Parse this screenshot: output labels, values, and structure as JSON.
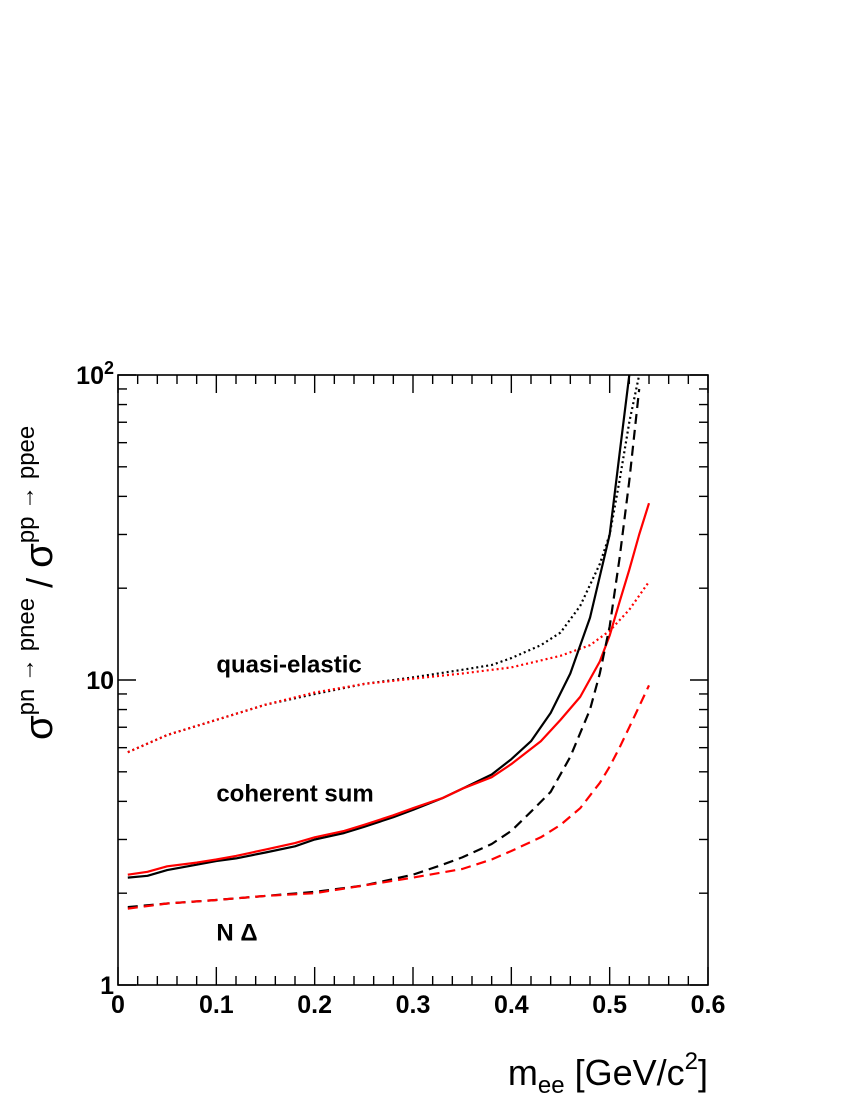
{
  "chart_data": {
    "type": "line",
    "xlabel": {
      "base": "m",
      "sub": "ee",
      "unit": " [GeV/c",
      "sup": "2",
      "close": "]"
    },
    "ylabel": {
      "sigma1": "σ",
      "sup1": "pn → pnee",
      "slash": " / ",
      "sigma2": "σ",
      "sup2": "pp → ppee"
    },
    "xlim": [
      0,
      0.6
    ],
    "ylim": [
      1,
      100
    ],
    "yscale": "log",
    "x_ticks": [
      {
        "v": 0,
        "label": "0"
      },
      {
        "v": 0.1,
        "label": "0.1"
      },
      {
        "v": 0.2,
        "label": "0.2"
      },
      {
        "v": 0.3,
        "label": "0.3"
      },
      {
        "v": 0.4,
        "label": "0.4"
      },
      {
        "v": 0.5,
        "label": "0.5"
      },
      {
        "v": 0.6,
        "label": "0.6"
      }
    ],
    "y_ticks": [
      {
        "v": 1,
        "label": "1",
        "sup": ""
      },
      {
        "v": 10,
        "label": "10",
        "sup": ""
      },
      {
        "v": 100,
        "label": "10",
        "sup": "2"
      }
    ],
    "annotations": [
      {
        "text": "quasi-elastic",
        "x": 0.1,
        "y": 10.6
      },
      {
        "text": "coherent sum",
        "x": 0.1,
        "y": 4.0
      },
      {
        "text": "N Δ",
        "x": 0.1,
        "y": 1.4
      }
    ],
    "series": [
      {
        "key": "qe_black",
        "color": "#000000",
        "style": "dotted",
        "x": [
          0.01,
          0.05,
          0.1,
          0.15,
          0.2,
          0.25,
          0.3,
          0.35,
          0.38,
          0.4,
          0.43,
          0.45,
          0.47,
          0.49,
          0.5,
          0.51,
          0.52,
          0.53
        ],
        "y": [
          5.8,
          6.6,
          7.4,
          8.3,
          9.0,
          9.7,
          10.2,
          10.8,
          11.2,
          11.8,
          13.0,
          14.3,
          17.5,
          24,
          30,
          45,
          70,
          100
        ]
      },
      {
        "key": "qe_red",
        "color": "#ff0000",
        "style": "dotted",
        "x": [
          0.01,
          0.05,
          0.1,
          0.15,
          0.2,
          0.25,
          0.3,
          0.35,
          0.4,
          0.45,
          0.48,
          0.5,
          0.52,
          0.54
        ],
        "y": [
          5.8,
          6.6,
          7.4,
          8.3,
          9.1,
          9.7,
          10.1,
          10.5,
          11.0,
          12.0,
          13.0,
          14.5,
          17,
          21
        ]
      },
      {
        "key": "coh_black",
        "color": "#000000",
        "style": "solid",
        "x": [
          0.01,
          0.03,
          0.05,
          0.08,
          0.1,
          0.12,
          0.15,
          0.18,
          0.2,
          0.23,
          0.25,
          0.28,
          0.3,
          0.33,
          0.35,
          0.38,
          0.4,
          0.42,
          0.44,
          0.46,
          0.48,
          0.5,
          0.51,
          0.52
        ],
        "y": [
          2.25,
          2.28,
          2.38,
          2.48,
          2.55,
          2.6,
          2.72,
          2.85,
          3.0,
          3.15,
          3.3,
          3.55,
          3.75,
          4.1,
          4.4,
          4.9,
          5.5,
          6.3,
          7.8,
          10.5,
          16,
          30,
          55,
          100
        ]
      },
      {
        "key": "coh_red",
        "color": "#ff0000",
        "style": "solid",
        "x": [
          0.01,
          0.03,
          0.05,
          0.08,
          0.1,
          0.12,
          0.15,
          0.18,
          0.2,
          0.23,
          0.25,
          0.28,
          0.3,
          0.33,
          0.35,
          0.38,
          0.4,
          0.43,
          0.45,
          0.47,
          0.49,
          0.5,
          0.51,
          0.52,
          0.53,
          0.54
        ],
        "y": [
          2.3,
          2.35,
          2.45,
          2.52,
          2.58,
          2.65,
          2.78,
          2.92,
          3.05,
          3.2,
          3.35,
          3.6,
          3.8,
          4.1,
          4.4,
          4.8,
          5.3,
          6.3,
          7.4,
          8.8,
          11.5,
          14,
          18,
          23,
          30,
          38
        ]
      },
      {
        "key": "nd_black",
        "color": "#000000",
        "style": "dashed",
        "x": [
          0.01,
          0.05,
          0.1,
          0.15,
          0.2,
          0.25,
          0.3,
          0.33,
          0.35,
          0.38,
          0.4,
          0.42,
          0.44,
          0.46,
          0.48,
          0.49,
          0.5,
          0.51,
          0.52,
          0.53
        ],
        "y": [
          1.8,
          1.85,
          1.9,
          1.96,
          2.02,
          2.12,
          2.3,
          2.48,
          2.62,
          2.9,
          3.2,
          3.7,
          4.3,
          5.6,
          8,
          10.5,
          15,
          25,
          45,
          90
        ]
      },
      {
        "key": "nd_red",
        "color": "#ff0000",
        "style": "dashed",
        "x": [
          0.01,
          0.05,
          0.1,
          0.15,
          0.2,
          0.25,
          0.3,
          0.35,
          0.38,
          0.4,
          0.43,
          0.45,
          0.47,
          0.49,
          0.5,
          0.51,
          0.52,
          0.53,
          0.54
        ],
        "y": [
          1.78,
          1.85,
          1.9,
          1.96,
          2.0,
          2.12,
          2.25,
          2.4,
          2.58,
          2.75,
          3.05,
          3.35,
          3.8,
          4.6,
          5.2,
          6.0,
          7.0,
          8.2,
          9.6
        ]
      }
    ]
  }
}
